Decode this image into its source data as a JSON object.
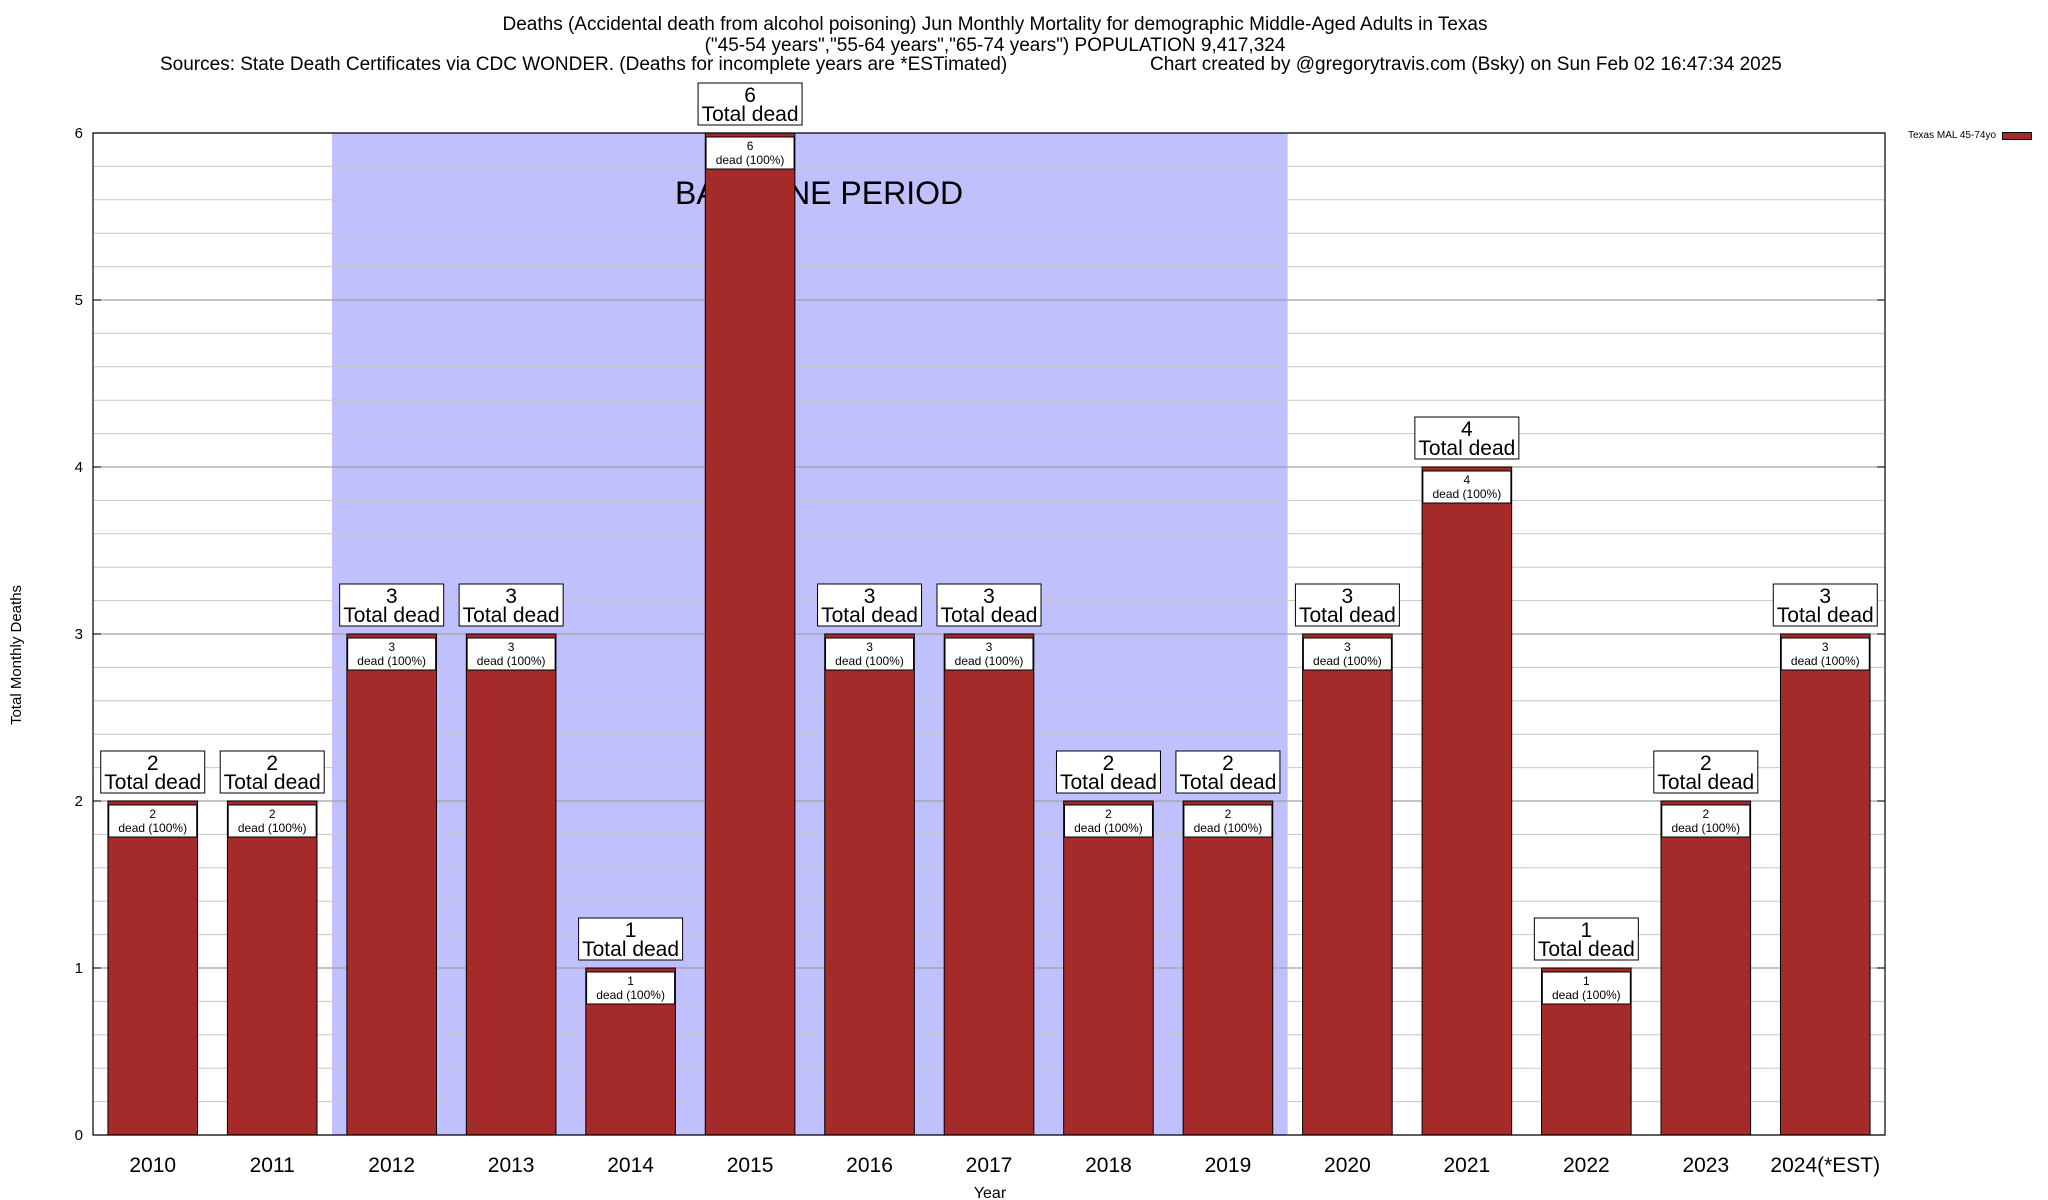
{
  "header": {
    "title_line1": "Deaths (Accidental death from alcohol poisoning) Jun Monthly Mortality for demographic Middle-Aged Adults in Texas",
    "title_line2": "(\"45-54 years\",\"55-64 years\",\"65-74 years\") POPULATION 9,417,324",
    "sources": "Sources: State Death Certificates via CDC WONDER. (Deaths for incomplete years are *ESTimated)",
    "credit": "Chart created by @gregorytravis.com (Bsky) on Sun Feb 02 16:47:34 2025"
  },
  "chart_data": {
    "type": "bar",
    "categories": [
      "2010",
      "2011",
      "2012",
      "2013",
      "2014",
      "2015",
      "2016",
      "2017",
      "2018",
      "2019",
      "2020",
      "2021",
      "2022",
      "2023",
      "2024(*EST)"
    ],
    "series": [
      {
        "name": "Texas MAL 45-74yo",
        "values": [
          2,
          2,
          3,
          3,
          1,
          6,
          3,
          3,
          2,
          2,
          3,
          4,
          1,
          2,
          3
        ]
      }
    ],
    "top_label_suffix": "Total dead",
    "inner_label_suffix": "dead (100%)",
    "xlabel": "Year",
    "ylabel": "Total Monthly Deaths",
    "ylim": [
      0,
      6
    ],
    "yticks": [
      "0",
      "1",
      "2",
      "3",
      "4",
      "5",
      "6"
    ],
    "grid": true,
    "minor_grid_per_major": 5,
    "baseline_period": {
      "label": "BASELINE PERIOD",
      "start": "2012",
      "end": "2019",
      "color": "#c0c0ff"
    },
    "bar_color": "#a52a2a",
    "legend_position": "top-right"
  }
}
